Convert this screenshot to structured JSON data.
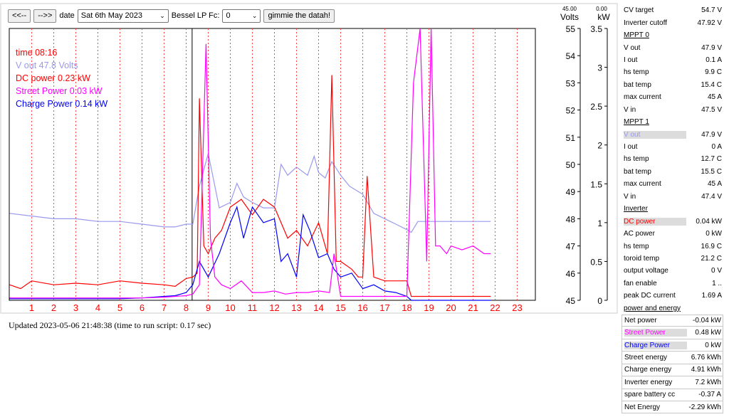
{
  "toolbar": {
    "prev_label": "<<--",
    "next_label": "-->>",
    "date_label": "date",
    "date_value": "Sat 6th May 2023",
    "filter_label": "Bessel LP Fc:",
    "filter_value": "0",
    "submit_label": "gimmie the datah!"
  },
  "legend": [
    {
      "text": "time 08:16",
      "color": "#ff0000"
    },
    {
      "text": "V out 47.8 Volts",
      "color": "#9999ee"
    },
    {
      "text": "DC power 0.23 kW",
      "color": "#ff0000"
    },
    {
      "text": "Street Power 0.03 kW",
      "color": "#ff00ff"
    },
    {
      "text": "Charge Power 0.14 kW",
      "color": "#0000ff"
    }
  ],
  "axes": {
    "volts_top_value": "45.00",
    "volts_label": "Volts",
    "kw_top_value": "0.00",
    "kw_label": "kW",
    "volts_ticks": [
      "55",
      "54",
      "53",
      "52",
      "51",
      "50",
      "49",
      "48",
      "47",
      "46",
      "45"
    ],
    "kw_ticks": [
      "3.5",
      "3",
      "2.5",
      "2",
      "1.5",
      "1",
      "0.5",
      "0"
    ],
    "hour_ticks": [
      "1",
      "2",
      "3",
      "4",
      "5",
      "6",
      "7",
      "8",
      "9",
      "10",
      "11",
      "12",
      "13",
      "14",
      "15",
      "16",
      "17",
      "18",
      "19",
      "20",
      "21",
      "22",
      "23"
    ]
  },
  "chart_data": {
    "type": "line",
    "xlabel": "",
    "x_range": [
      0,
      24
    ],
    "y_left": {
      "label": "Volts",
      "range": [
        45,
        55
      ]
    },
    "y_right": {
      "label": "kW",
      "range": [
        0,
        3.5
      ]
    },
    "cursor_hour": 8.27,
    "series": [
      {
        "name": "V out",
        "color": "#9999ee",
        "axis": "volts",
        "x": [
          0,
          1,
          2,
          3,
          4,
          5,
          6,
          7,
          7.5,
          8,
          8.3,
          8.6,
          9,
          9.5,
          10,
          10.3,
          10.6,
          11,
          11.5,
          12,
          12.3,
          12.6,
          13,
          13.5,
          13.8,
          14,
          14.3,
          14.6,
          15,
          15.4,
          15.8,
          16,
          16.5,
          17,
          17.5,
          18,
          18.2,
          18.5,
          21.8
        ],
        "y": [
          48.2,
          48.1,
          48.0,
          48.0,
          47.9,
          47.9,
          47.8,
          47.7,
          47.7,
          47.8,
          47.8,
          49.2,
          50.4,
          48.4,
          48.6,
          49.3,
          48.8,
          48.6,
          48.4,
          48.4,
          50.0,
          49.6,
          49.9,
          49.6,
          50.3,
          49.7,
          49.5,
          50.1,
          49.6,
          49.2,
          49.0,
          48.9,
          48.2,
          48.0,
          47.8,
          47.6,
          47.5,
          47.9,
          47.9
        ]
      },
      {
        "name": "DC power",
        "color": "#ff0000",
        "axis": "kw",
        "x": [
          0,
          0.5,
          1,
          2,
          3,
          4,
          5,
          6,
          7,
          7.5,
          8,
          8.3,
          8.5,
          8.6,
          8.8,
          9,
          9.3,
          9.6,
          10,
          10.5,
          11,
          11.5,
          12,
          12.3,
          12.6,
          13,
          13.5,
          14,
          14.4,
          14.6,
          14.8,
          15,
          15.5,
          15.8,
          16,
          16.2,
          16.5,
          17,
          17.5,
          18,
          18.2,
          21.8
        ],
        "y": [
          0.2,
          0.15,
          0.25,
          0.2,
          0.22,
          0.2,
          0.25,
          0.22,
          0.2,
          0.18,
          0.28,
          0.3,
          0.35,
          2.6,
          0.7,
          0.6,
          0.8,
          0.9,
          1.2,
          1.3,
          1.1,
          1.3,
          1.2,
          1.0,
          0.8,
          0.9,
          0.7,
          1.0,
          0.6,
          2.9,
          0.5,
          0.5,
          0.4,
          0.3,
          0.3,
          1.6,
          0.3,
          0.25,
          0.25,
          0.25,
          0.05,
          0.05
        ]
      },
      {
        "name": "Street Power",
        "color": "#ff00ff",
        "axis": "kw",
        "x": [
          0,
          1,
          2,
          3,
          4,
          5,
          6,
          7,
          7.5,
          8,
          8.3,
          8.6,
          8.9,
          9.1,
          9.3,
          9.6,
          10,
          10.5,
          11,
          11.5,
          12,
          12.5,
          13,
          13.5,
          14,
          14.5,
          14.7,
          15,
          15.5,
          16,
          16.5,
          17,
          18,
          18.3,
          18.6,
          18.9,
          19.1,
          19.3,
          19.5,
          19.8,
          20,
          20.5,
          21,
          21.5,
          21.8
        ],
        "y": [
          0.03,
          0.03,
          0.03,
          0.03,
          0.03,
          0.03,
          0.03,
          0.04,
          0.05,
          0.06,
          0.08,
          0.2,
          3.3,
          0.8,
          0.3,
          0.2,
          0.15,
          0.25,
          0.1,
          0.1,
          0.12,
          0.08,
          0.1,
          0.1,
          0.12,
          0.1,
          0.6,
          0.05,
          0.05,
          0.05,
          0.05,
          0.05,
          0.05,
          2.8,
          3.5,
          0.5,
          3.5,
          0.7,
          0.7,
          0.6,
          0.7,
          0.65,
          0.7,
          0.6,
          0.6
        ]
      },
      {
        "name": "Charge Power",
        "color": "#0000ff",
        "axis": "kw",
        "x": [
          0,
          1,
          2,
          3,
          4,
          5,
          6,
          7,
          7.5,
          8,
          8.3,
          8.6,
          9,
          9.5,
          10,
          10.3,
          10.6,
          11,
          11.5,
          12,
          12.3,
          12.6,
          13,
          13.3,
          13.6,
          14,
          14.4,
          14.7,
          15,
          15.5,
          16,
          16.5,
          17,
          17.5,
          18,
          18.2,
          21.8
        ],
        "y": [
          0.02,
          0.02,
          0.02,
          0.02,
          0.02,
          0.02,
          0.03,
          0.05,
          0.06,
          0.1,
          0.2,
          0.5,
          0.3,
          0.6,
          1.0,
          1.2,
          0.8,
          1.2,
          1.0,
          1.05,
          0.5,
          0.6,
          0.3,
          1.1,
          0.9,
          0.55,
          0.6,
          0.4,
          0.3,
          0.35,
          0.15,
          0.2,
          0.12,
          0.1,
          0.05,
          0.0,
          0.0
        ]
      }
    ]
  },
  "status": {
    "updated_text": "Updated 2023-05-06 21:48:38   (time to run script: 0.17 sec)"
  },
  "panel": {
    "rows": [
      {
        "label": "CV target",
        "value": "54.7 V"
      },
      {
        "label": "Inverter cutoff",
        "value": "47.92 V"
      },
      {
        "label": "MPPT 0",
        "value": "",
        "kind": "sec"
      },
      {
        "label": "V out",
        "value": "47.9 V"
      },
      {
        "label": "I out",
        "value": "0.1 A"
      },
      {
        "label": "hs temp",
        "value": "9.9 C"
      },
      {
        "label": "bat temp",
        "value": "15.4 C"
      },
      {
        "label": "max current",
        "value": "45 A"
      },
      {
        "label": "V in",
        "value": "47.5 V"
      },
      {
        "label": "MPPT 1",
        "value": "",
        "kind": "sec"
      },
      {
        "label": "V out",
        "value": "47.9 V",
        "kind": "hl",
        "color": "#9999ee"
      },
      {
        "label": "I out",
        "value": "0 A"
      },
      {
        "label": "hs temp",
        "value": "12.7 C"
      },
      {
        "label": "bat temp",
        "value": "15.5 C"
      },
      {
        "label": "max current",
        "value": "45 A"
      },
      {
        "label": "V in",
        "value": "47.4 V"
      },
      {
        "label": "Inverter",
        "value": "",
        "kind": "sec"
      },
      {
        "label": "DC power",
        "value": "0.04 kW",
        "kind": "hl",
        "color": "#ff0000"
      },
      {
        "label": "AC power",
        "value": "0 kW"
      },
      {
        "label": "hs temp",
        "value": "16.9 C"
      },
      {
        "label": "toroid temp",
        "value": "21.2 C"
      },
      {
        "label": "output voltage",
        "value": "0 V"
      },
      {
        "label": "fan enable",
        "value": "1 .."
      },
      {
        "label": "peak DC current",
        "value": "1.69 A"
      },
      {
        "label": "power and energy",
        "value": "",
        "kind": "sec"
      },
      {
        "label": "Net power",
        "value": "-0.04 kW",
        "box": true,
        "boxtop": true
      },
      {
        "label": "Street Power",
        "value": "0.48 kW",
        "kind": "hl",
        "color": "#ff00ff",
        "box": true
      },
      {
        "label": "Charge Power",
        "value": "0 kW",
        "kind": "hl",
        "color": "#0000ff",
        "box": true
      },
      {
        "label": "Street energy",
        "value": "6.76 kWh",
        "box": true
      },
      {
        "label": "Charge energy",
        "value": "4.91 kWh",
        "box": true
      },
      {
        "label": "Inverter energy",
        "value": "7.2 kWh",
        "box": true
      },
      {
        "label": "spare battery cc",
        "value": "-0.37 A",
        "box": true
      },
      {
        "label": "Net Energy",
        "value": "-2.29 kWh",
        "box": true
      }
    ]
  }
}
